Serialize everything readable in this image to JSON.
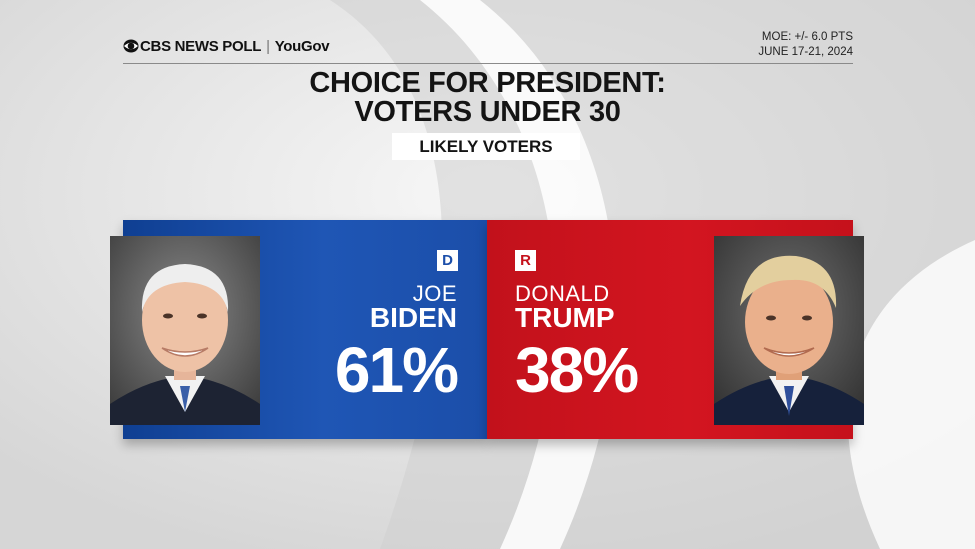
{
  "header": {
    "brand_primary": "CBS NEWS POLL",
    "brand_secondary": "YouGov",
    "moe": "MOE: +/- 6.0 PTS",
    "dates": "JUNE 17-21, 2024"
  },
  "title_line1": "CHOICE FOR PRESIDENT:",
  "title_line2": "VOTERS UNDER 30",
  "subtitle": "LIKELY VOTERS",
  "candidates": [
    {
      "party": "D",
      "first_name": "JOE",
      "last_name": "BIDEN",
      "percent": "61%",
      "color": "#1b4ea9"
    },
    {
      "party": "R",
      "first_name": "DONALD",
      "last_name": "TRUMP",
      "percent": "38%",
      "color": "#c5111b"
    }
  ]
}
